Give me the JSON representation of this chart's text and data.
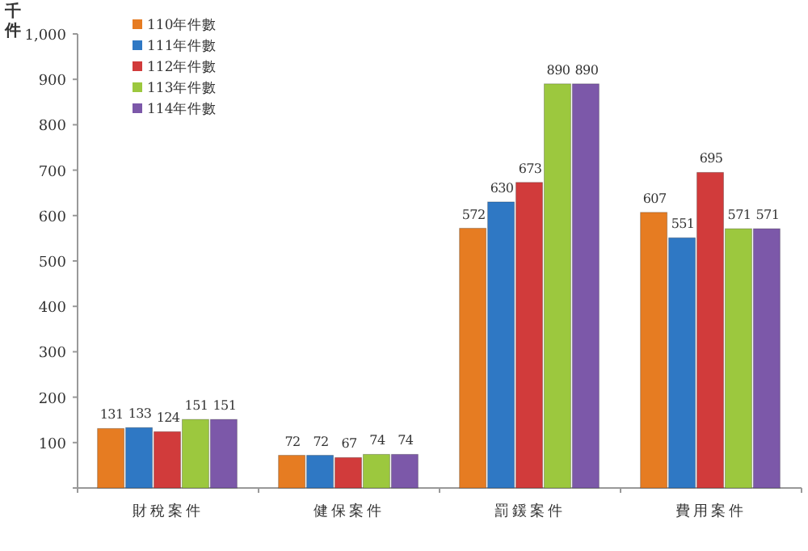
{
  "chart_data": {
    "type": "bar",
    "ylabel": "千件",
    "categories": [
      "財稅案件",
      "健保案件",
      "罰鍰案件",
      "費用案件"
    ],
    "series": [
      {
        "name": "110年件數",
        "color": "#e67c22",
        "values": [
          131,
          72,
          572,
          607
        ]
      },
      {
        "name": "111年件數",
        "color": "#2f78c4",
        "values": [
          133,
          72,
          630,
          551
        ]
      },
      {
        "name": "112年件數",
        "color": "#d13b3b",
        "values": [
          124,
          67,
          673,
          695
        ]
      },
      {
        "name": "113年件數",
        "color": "#9cc83e",
        "values": [
          151,
          74,
          890,
          571
        ]
      },
      {
        "name": "114年件數",
        "color": "#7c58a9",
        "values": [
          151,
          74,
          890,
          571
        ]
      }
    ],
    "ylim": [
      0,
      1000
    ],
    "yticks": [
      {
        "value": 0,
        "label": null
      },
      100,
      200,
      300,
      400,
      500,
      600,
      700,
      800,
      900,
      {
        "value": 1000,
        "label": "1,000"
      }
    ],
    "data_labels": true,
    "grid": false,
    "legend": "top left"
  }
}
